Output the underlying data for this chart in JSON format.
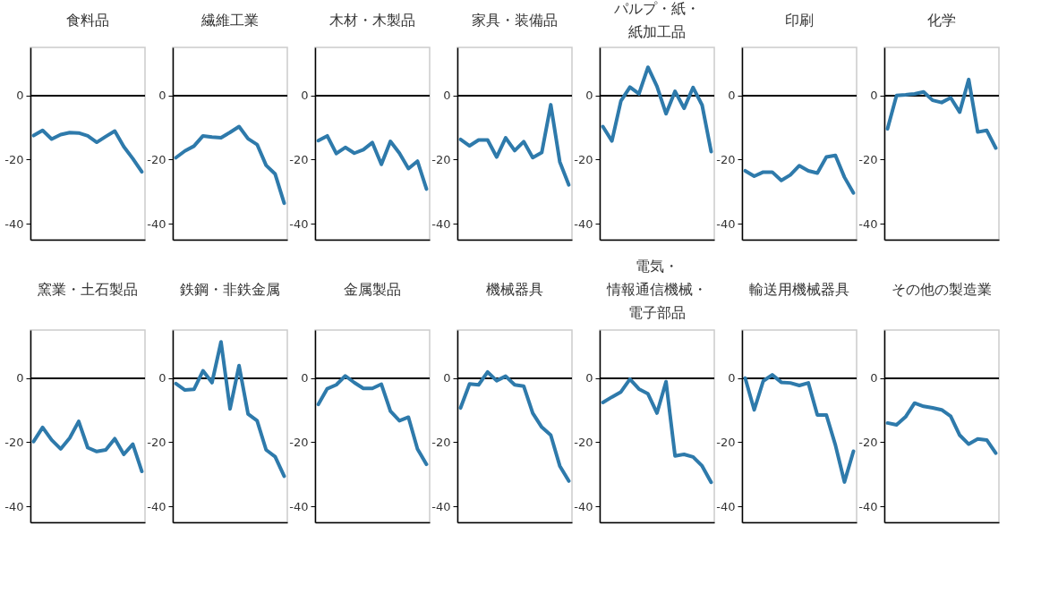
{
  "chart_data": [
    {
      "type": "line",
      "title": "食料品",
      "categories": [
        null,
        null,
        null,
        null,
        null,
        null,
        null,
        null,
        null,
        null,
        null,
        null,
        null
      ],
      "values": [
        -12.5,
        -10.9,
        -13.6,
        -12.2,
        -11.6,
        -11.7,
        -12.6,
        -14.6,
        -12.8,
        -11.1,
        -16.0,
        -19.7,
        -23.8
      ],
      "color": "#2e7aab",
      "ylim": [
        -45,
        15
      ],
      "yticks": [
        -40,
        -20,
        0
      ],
      "ref_lines": [
        {
          "axis": "y",
          "value": 0
        }
      ],
      "tick_labels": "y"
    },
    {
      "type": "line",
      "title": "繊維工業",
      "categories": [
        null,
        null,
        null,
        null,
        null,
        null,
        null,
        null,
        null,
        null,
        null,
        null,
        null
      ],
      "values": [
        -19.4,
        -17.3,
        -15.8,
        -12.6,
        -13.0,
        -13.2,
        -11.5,
        -9.7,
        -13.5,
        -15.3,
        -21.8,
        -24.5,
        -33.6
      ],
      "color": "#2e7aab",
      "ylim": [
        -45,
        15
      ],
      "yticks": [
        -40,
        -20,
        0
      ],
      "ref_lines": [
        {
          "axis": "y",
          "value": 0
        }
      ],
      "tick_labels": "y"
    },
    {
      "type": "line",
      "title": "木材・木製品",
      "categories": [
        null,
        null,
        null,
        null,
        null,
        null,
        null,
        null,
        null,
        null,
        null,
        null,
        null
      ],
      "values": [
        -14.1,
        -12.6,
        -18.1,
        -16.2,
        -18.0,
        -16.9,
        -14.7,
        -21.5,
        -14.3,
        -18.0,
        -22.8,
        -20.5,
        -29.2
      ],
      "color": "#2e7aab",
      "ylim": [
        -45,
        15
      ],
      "yticks": [
        -40,
        -20,
        0
      ],
      "ref_lines": [
        {
          "axis": "y",
          "value": 0
        }
      ],
      "tick_labels": "y"
    },
    {
      "type": "line",
      "title": "家具・装備品",
      "categories": [
        null,
        null,
        null,
        null,
        null,
        null,
        null,
        null,
        null,
        null,
        null,
        null,
        null
      ],
      "values": [
        -13.7,
        -15.7,
        -13.9,
        -13.9,
        -19.2,
        -13.2,
        -17.2,
        -14.4,
        -19.4,
        -17.8,
        -2.9,
        -20.7,
        -27.9
      ],
      "color": "#2e7aab",
      "ylim": [
        -45,
        15
      ],
      "yticks": [
        -40,
        -20,
        0
      ],
      "ref_lines": [
        {
          "axis": "y",
          "value": 0
        }
      ],
      "tick_labels": "y"
    },
    {
      "type": "line",
      "title": "パルプ・紙・紙加工品",
      "categories": [
        null,
        null,
        null,
        null,
        null,
        null,
        null,
        null,
        null,
        null,
        null,
        null,
        null
      ],
      "values": [
        -9.7,
        -14.2,
        -1.7,
        2.6,
        0.5,
        8.8,
        2.8,
        -5.7,
        1.3,
        -4.0,
        2.5,
        -3.0,
        -17.5
      ],
      "color": "#2e7aab",
      "ylim": [
        -45,
        15
      ],
      "yticks": [
        -40,
        -20,
        0
      ],
      "ref_lines": [
        {
          "axis": "y",
          "value": 0
        }
      ],
      "tick_labels": "y"
    },
    {
      "type": "line",
      "title": "印刷",
      "categories": [
        null,
        null,
        null,
        null,
        null,
        null,
        null,
        null,
        null,
        null,
        null,
        null,
        null
      ],
      "values": [
        -23.5,
        -25.2,
        -23.9,
        -23.9,
        -26.5,
        -24.8,
        -21.9,
        -23.5,
        -24.2,
        -19.2,
        -18.7,
        -25.5,
        -30.4
      ],
      "color": "#2e7aab",
      "ylim": [
        -45,
        15
      ],
      "yticks": [
        -40,
        -20,
        0
      ],
      "ref_lines": [
        {
          "axis": "y",
          "value": 0
        }
      ],
      "tick_labels": "y"
    },
    {
      "type": "line",
      "title": "化学",
      "categories": [
        null,
        null,
        null,
        null,
        null,
        null,
        null,
        null,
        null,
        null,
        null,
        null,
        null
      ],
      "values": [
        -10.4,
        0,
        0.2,
        0.5,
        1.1,
        -1.5,
        -2.2,
        -0.7,
        -5.2,
        5.0,
        -11.4,
        -10.9,
        -16.4
      ],
      "color": "#2e7aab",
      "ylim": [
        -45,
        15
      ],
      "yticks": [
        -40,
        -20,
        0
      ],
      "ref_lines": [
        {
          "axis": "y",
          "value": 0
        }
      ],
      "tick_labels": "y"
    },
    {
      "type": "line",
      "title": "窯業・土石製品",
      "categories": [
        null,
        null,
        null,
        null,
        null,
        null,
        null,
        null,
        null,
        null,
        null,
        null,
        null
      ],
      "values": [
        -19.8,
        -15.4,
        -19.3,
        -22.1,
        -18.7,
        -13.5,
        -21.7,
        -22.9,
        -22.4,
        -18.9,
        -23.8,
        -20.6,
        -29.1
      ],
      "color": "#2e7aab",
      "ylim": [
        -45,
        15
      ],
      "yticks": [
        -40,
        -20,
        0
      ],
      "ref_lines": [
        {
          "axis": "y",
          "value": 0
        }
      ],
      "tick_labels": "y"
    },
    {
      "type": "line",
      "title": "鉄鋼・非鉄金属",
      "categories": [
        null,
        null,
        null,
        null,
        null,
        null,
        null,
        null,
        null,
        null,
        null,
        null,
        null
      ],
      "values": [
        -1.7,
        -3.7,
        -3.5,
        2.3,
        -1.4,
        11.3,
        -9.6,
        3.9,
        -11.2,
        -13.3,
        -22.4,
        -24.5,
        -30.6
      ],
      "color": "#2e7aab",
      "ylim": [
        -45,
        15
      ],
      "yticks": [
        -40,
        -20,
        0
      ],
      "ref_lines": [
        {
          "axis": "y",
          "value": 0
        }
      ],
      "tick_labels": "y"
    },
    {
      "type": "line",
      "title": "金属製品",
      "categories": [
        null,
        null,
        null,
        null,
        null,
        null,
        null,
        null,
        null,
        null,
        null,
        null,
        null
      ],
      "values": [
        -8.2,
        -3.3,
        -2.1,
        0.7,
        -1.4,
        -3.2,
        -3.2,
        -1.9,
        -10.3,
        -13.3,
        -12.2,
        -22.1,
        -26.9
      ],
      "color": "#2e7aab",
      "ylim": [
        -45,
        15
      ],
      "yticks": [
        -40,
        -20,
        0
      ],
      "ref_lines": [
        {
          "axis": "y",
          "value": 0
        }
      ],
      "tick_labels": "y"
    },
    {
      "type": "line",
      "title": "機械器具",
      "categories": [
        null,
        null,
        null,
        null,
        null,
        null,
        null,
        null,
        null,
        null,
        null,
        null,
        null
      ],
      "values": [
        -9.3,
        -1.8,
        -2.1,
        1.9,
        -0.8,
        0.6,
        -2.1,
        -2.5,
        -10.9,
        -15.3,
        -17.8,
        -27.4,
        -32.1
      ],
      "color": "#2e7aab",
      "ylim": [
        -45,
        15
      ],
      "yticks": [
        -40,
        -20,
        0
      ],
      "ref_lines": [
        {
          "axis": "y",
          "value": 0
        }
      ],
      "tick_labels": "y"
    },
    {
      "type": "line",
      "title": "電気・情報通信機械・電子部品",
      "categories": [
        null,
        null,
        null,
        null,
        null,
        null,
        null,
        null,
        null,
        null,
        null,
        null,
        null
      ],
      "values": [
        -7.6,
        -5.9,
        -4.3,
        -0.3,
        -3.4,
        -4.9,
        -10.9,
        -1.1,
        -24.3,
        -23.8,
        -24.6,
        -27.4,
        -32.5
      ],
      "color": "#2e7aab",
      "ylim": [
        -45,
        15
      ],
      "yticks": [
        -40,
        -20,
        0
      ],
      "ref_lines": [
        {
          "axis": "y",
          "value": 0
        }
      ],
      "tick_labels": "y"
    },
    {
      "type": "line",
      "title": "輸送用機械器具",
      "categories": [
        null,
        null,
        null,
        null,
        null,
        null,
        null,
        null,
        null,
        null,
        null,
        null,
        null
      ],
      "values": [
        0,
        -9.9,
        -0.9,
        1.0,
        -1.3,
        -1.5,
        -2.3,
        -1.5,
        -11.5,
        -11.5,
        -20.9,
        -32.4,
        -22.8
      ],
      "color": "#2e7aab",
      "ylim": [
        -45,
        15
      ],
      "yticks": [
        -40,
        -20,
        0
      ],
      "ref_lines": [
        {
          "axis": "y",
          "value": 0
        }
      ],
      "tick_labels": "y"
    },
    {
      "type": "line",
      "title": "その他の製造業",
      "categories": [
        null,
        null,
        null,
        null,
        null,
        null,
        null,
        null,
        null,
        null,
        null,
        null,
        null
      ],
      "values": [
        -14.0,
        -14.6,
        -12.1,
        -7.8,
        -8.8,
        -9.3,
        -9.9,
        -11.9,
        -17.8,
        -20.6,
        -19.0,
        -19.3,
        -23.4
      ],
      "color": "#2e7aab",
      "ylim": [
        -45,
        15
      ],
      "yticks": [
        -40,
        -20,
        0
      ],
      "ref_lines": [
        {
          "axis": "y",
          "value": 0
        }
      ],
      "tick_labels": "y"
    }
  ]
}
